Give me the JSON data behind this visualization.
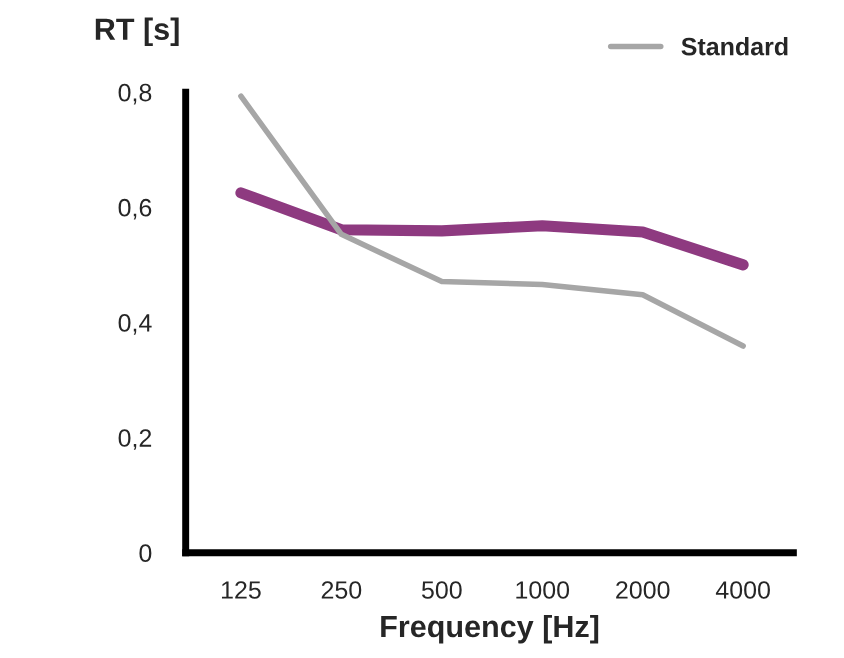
{
  "chart_data": {
    "type": "line",
    "ylabel": "RT [s]",
    "xlabel": "Frequency [Hz]",
    "categories": [
      "125",
      "250",
      "500",
      "1000",
      "2000",
      "4000"
    ],
    "series": [
      {
        "color": "#8e3a80",
        "values": [
          0.625,
          0.561,
          0.559,
          0.568,
          0.557,
          0.5
        ]
      },
      {
        "name": "Standard",
        "color": "#a6a6a6",
        "values": [
          0.793,
          0.553,
          0.471,
          0.466,
          0.448,
          0.359
        ]
      }
    ],
    "ylim": [
      0,
      0.8
    ],
    "yticks": [
      {
        "value": 0,
        "label": "0"
      },
      {
        "value": 0.2,
        "label": "0,2"
      },
      {
        "value": 0.4,
        "label": "0,4"
      },
      {
        "value": 0.6,
        "label": "0,6"
      },
      {
        "value": 0.8,
        "label": "0,8"
      }
    ],
    "grid": false,
    "legend": "top right"
  }
}
